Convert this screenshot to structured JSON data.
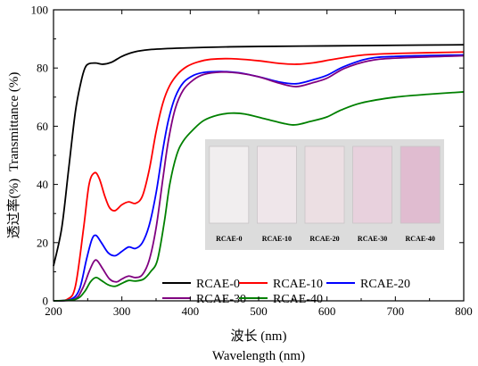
{
  "chart_data": {
    "type": "line",
    "xlabel_cn": "波长 (nm)",
    "xlabel_en": "Wavelength (nm)",
    "ylabel_cn": "透过率(%)",
    "ylabel_en": "Transmittance (%)",
    "xlim": [
      200,
      800
    ],
    "ylim": [
      0,
      100
    ],
    "xticks": [
      200,
      300,
      400,
      500,
      600,
      700,
      800
    ],
    "yticks": [
      0,
      20,
      40,
      60,
      80,
      100
    ],
    "legend_placement": "bottom-right",
    "series": [
      {
        "name": "RCAE-0",
        "color": "#000000",
        "points": [
          [
            200,
            12
          ],
          [
            212,
            25
          ],
          [
            222,
            45
          ],
          [
            232,
            65
          ],
          [
            240,
            75
          ],
          [
            246,
            80
          ],
          [
            252,
            81.5
          ],
          [
            262,
            81.7
          ],
          [
            272,
            81.3
          ],
          [
            285,
            82
          ],
          [
            300,
            84
          ],
          [
            318,
            85.5
          ],
          [
            340,
            86.3
          ],
          [
            380,
            86.8
          ],
          [
            440,
            87.2
          ],
          [
            500,
            87.4
          ],
          [
            600,
            87.6
          ],
          [
            700,
            87.8
          ],
          [
            800,
            88
          ]
        ]
      },
      {
        "name": "RCAE-10",
        "color": "#ff0000",
        "points": [
          [
            200,
            0
          ],
          [
            220,
            0.5
          ],
          [
            232,
            5
          ],
          [
            244,
            25
          ],
          [
            252,
            40
          ],
          [
            260,
            44
          ],
          [
            267,
            42
          ],
          [
            275,
            36
          ],
          [
            282,
            32
          ],
          [
            290,
            31
          ],
          [
            300,
            33
          ],
          [
            310,
            34
          ],
          [
            320,
            33.5
          ],
          [
            330,
            36
          ],
          [
            340,
            45
          ],
          [
            350,
            58
          ],
          [
            360,
            68
          ],
          [
            370,
            74
          ],
          [
            382,
            78
          ],
          [
            395,
            80.5
          ],
          [
            410,
            82
          ],
          [
            430,
            83
          ],
          [
            460,
            83.2
          ],
          [
            500,
            82.5
          ],
          [
            530,
            81.6
          ],
          [
            555,
            81.3
          ],
          [
            580,
            81.8
          ],
          [
            610,
            83
          ],
          [
            650,
            84.4
          ],
          [
            700,
            85
          ],
          [
            800,
            85.5
          ]
        ]
      },
      {
        "name": "RCAE-20",
        "color": "#0000ff",
        "points": [
          [
            200,
            0
          ],
          [
            225,
            0.5
          ],
          [
            238,
            4
          ],
          [
            248,
            14
          ],
          [
            256,
            21
          ],
          [
            262,
            22.5
          ],
          [
            270,
            20
          ],
          [
            280,
            16.5
          ],
          [
            290,
            15.5
          ],
          [
            300,
            17
          ],
          [
            310,
            18.5
          ],
          [
            320,
            18
          ],
          [
            330,
            20
          ],
          [
            340,
            26
          ],
          [
            350,
            37
          ],
          [
            360,
            52
          ],
          [
            368,
            62
          ],
          [
            378,
            70
          ],
          [
            390,
            75
          ],
          [
            405,
            77.5
          ],
          [
            420,
            78.5
          ],
          [
            445,
            78.8
          ],
          [
            470,
            78.4
          ],
          [
            500,
            77
          ],
          [
            530,
            75.2
          ],
          [
            555,
            74.6
          ],
          [
            580,
            76
          ],
          [
            600,
            77.5
          ],
          [
            625,
            80.5
          ],
          [
            660,
            83.2
          ],
          [
            700,
            84
          ],
          [
            800,
            84.5
          ]
        ]
      },
      {
        "name": "RCAE-30",
        "color": "#800080",
        "points": [
          [
            200,
            0
          ],
          [
            230,
            0.5
          ],
          [
            242,
            4
          ],
          [
            252,
            10
          ],
          [
            259,
            13.5
          ],
          [
            264,
            13.8
          ],
          [
            272,
            11
          ],
          [
            282,
            7.5
          ],
          [
            292,
            6.5
          ],
          [
            300,
            7.5
          ],
          [
            310,
            8.5
          ],
          [
            320,
            8
          ],
          [
            330,
            9
          ],
          [
            340,
            14
          ],
          [
            350,
            25
          ],
          [
            360,
            42
          ],
          [
            368,
            55
          ],
          [
            378,
            66
          ],
          [
            390,
            72.5
          ],
          [
            405,
            76
          ],
          [
            420,
            77.8
          ],
          [
            445,
            78.6
          ],
          [
            470,
            78.3
          ],
          [
            500,
            77
          ],
          [
            530,
            74.8
          ],
          [
            555,
            73.6
          ],
          [
            580,
            75
          ],
          [
            600,
            76.5
          ],
          [
            625,
            79.8
          ],
          [
            660,
            82.4
          ],
          [
            700,
            83.4
          ],
          [
            800,
            84.2
          ]
        ]
      },
      {
        "name": "RCAE-40",
        "color": "#008000",
        "points": [
          [
            200,
            0
          ],
          [
            232,
            0.5
          ],
          [
            245,
            3
          ],
          [
            254,
            6.5
          ],
          [
            262,
            8
          ],
          [
            270,
            7
          ],
          [
            280,
            5.5
          ],
          [
            290,
            5
          ],
          [
            300,
            6
          ],
          [
            310,
            7
          ],
          [
            320,
            6.8
          ],
          [
            332,
            7.5
          ],
          [
            342,
            10
          ],
          [
            352,
            14
          ],
          [
            362,
            27
          ],
          [
            370,
            40
          ],
          [
            380,
            50
          ],
          [
            390,
            55
          ],
          [
            405,
            59
          ],
          [
            420,
            62
          ],
          [
            440,
            63.8
          ],
          [
            460,
            64.5
          ],
          [
            480,
            64.2
          ],
          [
            510,
            62.5
          ],
          [
            540,
            60.8
          ],
          [
            555,
            60.5
          ],
          [
            575,
            61.6
          ],
          [
            600,
            63.2
          ],
          [
            620,
            65.5
          ],
          [
            650,
            68
          ],
          [
            700,
            70
          ],
          [
            750,
            71
          ],
          [
            800,
            71.8
          ]
        ]
      }
    ],
    "inset": {
      "labels": [
        "RCAE-0",
        "RCAE-10",
        "RCAE-20",
        "RCAE-30",
        "RCAE-40"
      ],
      "fill_colors": [
        "#f1eeef",
        "#efe6ea",
        "#ecdfe3",
        "#e8d1dd",
        "#e0bcd0"
      ]
    }
  }
}
